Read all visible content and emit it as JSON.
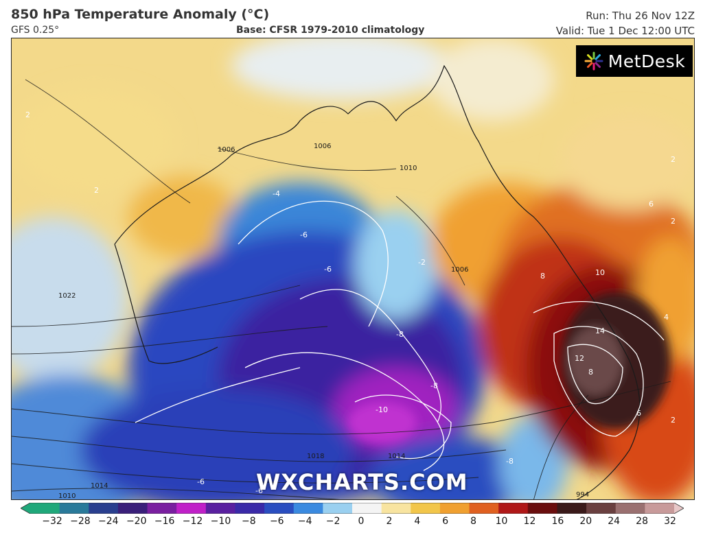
{
  "header": {
    "title": "850 hPa Temperature Anomaly (°C)",
    "model": "GFS 0.25°",
    "base": "Base: CFSR 1979-2010 climatology",
    "run": "Run: Thu 26 Nov 12Z",
    "valid": "Valid: Tue 1 Dec 12:00 UTC"
  },
  "logo": {
    "text": "MetDesk",
    "icon": "metdesk-starburst-icon"
  },
  "watermark": "WXCHARTS.COM",
  "map": {
    "region": "Australia",
    "contour_labels": [
      "2",
      "2",
      "2",
      "2",
      "-2",
      "-4",
      "-6",
      "-6",
      "-8",
      "-8",
      "-8",
      "-10",
      "-6",
      "-6",
      "6",
      "8",
      "10",
      "12",
      "14",
      "8",
      "6",
      "4",
      "2"
    ],
    "isobar_labels": [
      "1006",
      "1006",
      "1010",
      "1006",
      "1022",
      "1014",
      "1010",
      "1018",
      "1014",
      "994"
    ]
  },
  "colorbar": {
    "ticks": [
      "−32",
      "−28",
      "−24",
      "−20",
      "−16",
      "−12",
      "−10",
      "−8",
      "−6",
      "−4",
      "−2",
      "0",
      "2",
      "4",
      "6",
      "8",
      "10",
      "12",
      "16",
      "20",
      "24",
      "28",
      "32"
    ],
    "colors": [
      "#1fa87a",
      "#2a7a9a",
      "#2a3f8f",
      "#3a1f7a",
      "#7a1fa0",
      "#c020c8",
      "#5a20a0",
      "#3a2aa8",
      "#2a4ec0",
      "#3a8ae0",
      "#9ad0f0",
      "#f4f4f4",
      "#f8e4a0",
      "#f2c64a",
      "#f0a030",
      "#e06020",
      "#b01818",
      "#6a0e0e",
      "#3a1a1a",
      "#6a4040",
      "#9a7070",
      "#c89a9a",
      "#e8c8c8"
    ]
  }
}
